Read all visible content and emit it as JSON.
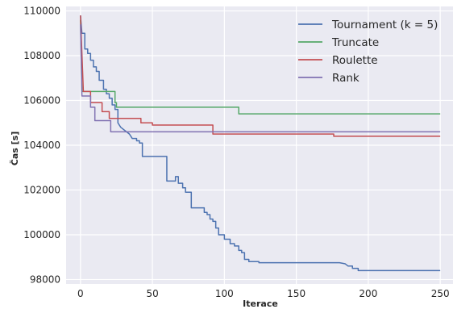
{
  "chart_data": {
    "type": "line",
    "title": "",
    "xlabel": "Iterace",
    "ylabel": "Čas [s]",
    "xlim": [
      -10,
      260
    ],
    "ylim": [
      97800,
      110200
    ],
    "grid": true,
    "legend": "top-right",
    "x_ticks": [
      0,
      50,
      100,
      150,
      200,
      250
    ],
    "x_tick_labels": [
      "0",
      "50",
      "100",
      "150",
      "200",
      "250"
    ],
    "y_ticks": [
      98000,
      100000,
      102000,
      104000,
      106000,
      108000,
      110000
    ],
    "y_tick_labels": [
      "98000",
      "100000",
      "102000",
      "104000",
      "106000",
      "108000",
      "110000"
    ],
    "colors": {
      "background": "#eaeaf2",
      "grid": "#ffffff"
    },
    "series": [
      {
        "name": "Tournament (k = 5)",
        "color": "#4c72b0",
        "points": [
          [
            0,
            109800
          ],
          [
            1,
            109000
          ],
          [
            3,
            109000
          ],
          [
            3,
            108300
          ],
          [
            5,
            108300
          ],
          [
            5,
            108100
          ],
          [
            7,
            108100
          ],
          [
            7,
            107800
          ],
          [
            9,
            107800
          ],
          [
            9,
            107500
          ],
          [
            11,
            107500
          ],
          [
            11,
            107300
          ],
          [
            13,
            107300
          ],
          [
            13,
            106900
          ],
          [
            16,
            106900
          ],
          [
            16,
            106500
          ],
          [
            18,
            106500
          ],
          [
            18,
            106300
          ],
          [
            20,
            106300
          ],
          [
            20,
            106100
          ],
          [
            22,
            106100
          ],
          [
            22,
            105800
          ],
          [
            24,
            105800
          ],
          [
            24,
            105600
          ],
          [
            26,
            105600
          ],
          [
            26,
            105000
          ],
          [
            28,
            104800
          ],
          [
            30,
            104700
          ],
          [
            32,
            104600
          ],
          [
            34,
            104500
          ],
          [
            36,
            104300
          ],
          [
            39,
            104300
          ],
          [
            39,
            104200
          ],
          [
            41,
            104200
          ],
          [
            41,
            104100
          ],
          [
            43,
            104100
          ],
          [
            43,
            103500
          ],
          [
            50,
            103500
          ],
          [
            50,
            103500
          ],
          [
            60,
            103500
          ],
          [
            60,
            102400
          ],
          [
            66,
            102400
          ],
          [
            66,
            102600
          ],
          [
            68,
            102600
          ],
          [
            68,
            102300
          ],
          [
            71,
            102300
          ],
          [
            71,
            102100
          ],
          [
            73,
            102100
          ],
          [
            73,
            101900
          ],
          [
            75,
            101900
          ],
          [
            75,
            101900
          ],
          [
            77,
            101900
          ],
          [
            77,
            101200
          ],
          [
            86,
            101200
          ],
          [
            86,
            101000
          ],
          [
            88,
            101000
          ],
          [
            88,
            100900
          ],
          [
            90,
            100900
          ],
          [
            90,
            100700
          ],
          [
            92,
            100700
          ],
          [
            92,
            100600
          ],
          [
            94,
            100600
          ],
          [
            94,
            100300
          ],
          [
            96,
            100300
          ],
          [
            96,
            100000
          ],
          [
            100,
            100000
          ],
          [
            100,
            99800
          ],
          [
            104,
            99800
          ],
          [
            104,
            99600
          ],
          [
            107,
            99600
          ],
          [
            107,
            99500
          ],
          [
            110,
            99500
          ],
          [
            110,
            99300
          ],
          [
            112,
            99300
          ],
          [
            112,
            99200
          ],
          [
            114,
            99200
          ],
          [
            114,
            98900
          ],
          [
            117,
            98900
          ],
          [
            117,
            98800
          ],
          [
            124,
            98800
          ],
          [
            124,
            98750
          ],
          [
            180,
            98750
          ],
          [
            184,
            98700
          ],
          [
            186,
            98600
          ],
          [
            189,
            98600
          ],
          [
            189,
            98500
          ],
          [
            193,
            98500
          ],
          [
            193,
            98400
          ],
          [
            250,
            98400
          ]
        ]
      },
      {
        "name": "Truncate",
        "color": "#55a868",
        "points": [
          [
            0,
            109600
          ],
          [
            1,
            106400
          ],
          [
            24,
            106400
          ],
          [
            24,
            105900
          ],
          [
            25,
            105900
          ],
          [
            25,
            105700
          ],
          [
            110,
            105700
          ],
          [
            110,
            105400
          ],
          [
            250,
            105400
          ]
        ]
      },
      {
        "name": "Roulette",
        "color": "#c44e52",
        "points": [
          [
            0,
            109800
          ],
          [
            2,
            106400
          ],
          [
            7,
            106400
          ],
          [
            7,
            105900
          ],
          [
            15,
            105900
          ],
          [
            15,
            105500
          ],
          [
            20,
            105500
          ],
          [
            20,
            105200
          ],
          [
            42,
            105200
          ],
          [
            42,
            105000
          ],
          [
            50,
            105000
          ],
          [
            50,
            104900
          ],
          [
            92,
            104900
          ],
          [
            92,
            104500
          ],
          [
            171,
            104500
          ],
          [
            171,
            104500
          ],
          [
            176,
            104500
          ],
          [
            176,
            104400
          ],
          [
            250,
            104400
          ]
        ]
      },
      {
        "name": "Rank",
        "color": "#8172b2",
        "points": [
          [
            0,
            109400
          ],
          [
            1,
            106200
          ],
          [
            7,
            106200
          ],
          [
            7,
            105700
          ],
          [
            10,
            105700
          ],
          [
            10,
            105100
          ],
          [
            21,
            105100
          ],
          [
            21,
            104600
          ],
          [
            250,
            104600
          ]
        ]
      }
    ]
  }
}
